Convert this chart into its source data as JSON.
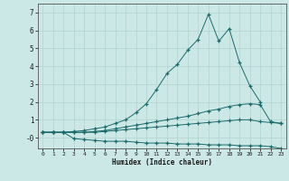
{
  "xlabel": "Humidex (Indice chaleur)",
  "background_color": "#cce8e6",
  "grid_color": "#b0d4d0",
  "line_color": "#1a6b6b",
  "x": [
    0,
    1,
    2,
    3,
    4,
    5,
    6,
    7,
    8,
    9,
    10,
    11,
    12,
    13,
    14,
    15,
    16,
    17,
    18,
    19,
    20,
    21,
    22,
    23
  ],
  "line1": [
    0.3,
    0.3,
    0.3,
    0.35,
    0.4,
    0.5,
    0.6,
    0.8,
    1.0,
    1.4,
    1.9,
    2.7,
    3.6,
    4.1,
    4.9,
    5.5,
    6.9,
    5.4,
    6.1,
    4.2,
    2.9,
    2.0,
    null,
    null
  ],
  "line2": [
    0.3,
    0.3,
    0.3,
    0.3,
    0.3,
    0.35,
    0.4,
    0.5,
    0.6,
    0.7,
    0.8,
    0.9,
    1.0,
    1.1,
    1.2,
    1.35,
    1.5,
    1.6,
    1.75,
    1.85,
    1.9,
    1.85,
    0.9,
    0.8
  ],
  "line3": [
    0.3,
    0.3,
    0.3,
    0.3,
    0.3,
    0.3,
    0.35,
    0.4,
    0.45,
    0.5,
    0.55,
    0.6,
    0.65,
    0.7,
    0.75,
    0.8,
    0.85,
    0.9,
    0.95,
    1.0,
    1.0,
    0.9,
    0.85,
    0.8
  ],
  "line4": [
    0.3,
    0.3,
    0.3,
    -0.05,
    -0.1,
    -0.15,
    -0.2,
    -0.2,
    -0.2,
    -0.25,
    -0.3,
    -0.3,
    -0.3,
    -0.35,
    -0.35,
    -0.35,
    -0.4,
    -0.4,
    -0.4,
    -0.45,
    -0.45,
    -0.45,
    -0.5,
    -0.6
  ],
  "ylim": [
    -0.6,
    7.5
  ],
  "xlim": [
    -0.5,
    23.5
  ],
  "yticks": [
    0,
    1,
    2,
    3,
    4,
    5,
    6,
    7
  ],
  "ytick_labels": [
    "-0",
    "1",
    "2",
    "3",
    "4",
    "5",
    "6",
    "7"
  ],
  "xticks": [
    0,
    1,
    2,
    3,
    4,
    5,
    6,
    7,
    8,
    9,
    10,
    11,
    12,
    13,
    14,
    15,
    16,
    17,
    18,
    19,
    20,
    21,
    22,
    23
  ]
}
